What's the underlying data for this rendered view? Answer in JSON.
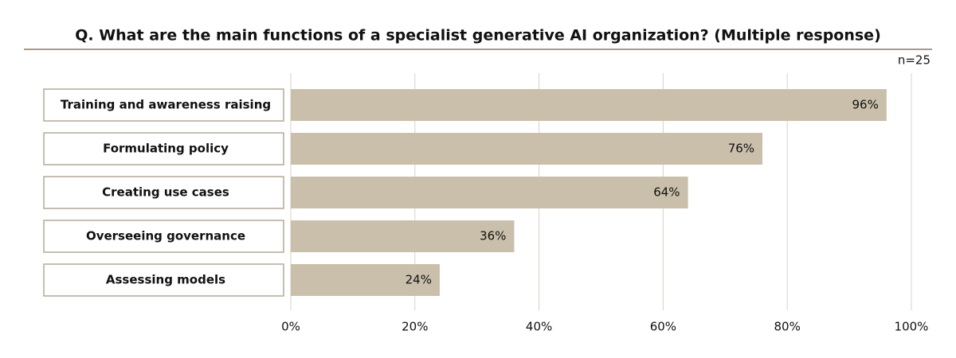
{
  "chart_data": {
    "type": "bar",
    "orientation": "horizontal",
    "title": "Q. What are the main functions of a specialist generative AI organization? (Multiple response)",
    "note": "n=25",
    "categories": [
      "Training and awareness raising",
      "Formulating policy",
      "Creating use cases",
      "Overseeing governance",
      "Assessing models"
    ],
    "values": [
      96,
      76,
      64,
      36,
      24
    ],
    "value_labels": [
      "96%",
      "76%",
      "64%",
      "36%",
      "24%"
    ],
    "color": "#c9bfab",
    "xlim": [
      0,
      100
    ],
    "xticks": [
      {
        "value": 0,
        "label": "0%"
      },
      {
        "value": 20,
        "label": "20%"
      },
      {
        "value": 40,
        "label": "40%"
      },
      {
        "value": 60,
        "label": "60%"
      },
      {
        "value": 80,
        "label": "80%"
      },
      {
        "value": 100,
        "label": "100%"
      }
    ],
    "grid": true
  }
}
